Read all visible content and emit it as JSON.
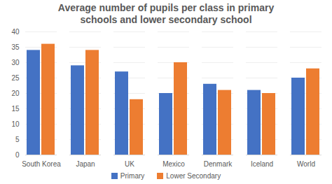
{
  "chart_data": {
    "type": "bar",
    "title": "Average number of pupils per class in primary schools and lower secondary school",
    "categories": [
      "South Korea",
      "Japan",
      "UK",
      "Mexico",
      "Denmark",
      "Iceland",
      "World"
    ],
    "series": [
      {
        "name": "Primary",
        "color": "#4472c4",
        "values": [
          34,
          29,
          27,
          20,
          23,
          21,
          25
        ]
      },
      {
        "name": "Lower Secondary",
        "color": "#ed7d31",
        "values": [
          36,
          34,
          18,
          30,
          21,
          20,
          28
        ]
      }
    ],
    "ylim": [
      0,
      40
    ],
    "yticks": [
      0,
      5,
      10,
      15,
      20,
      25,
      30,
      35,
      40
    ],
    "grid": true,
    "legend": "bottom"
  }
}
